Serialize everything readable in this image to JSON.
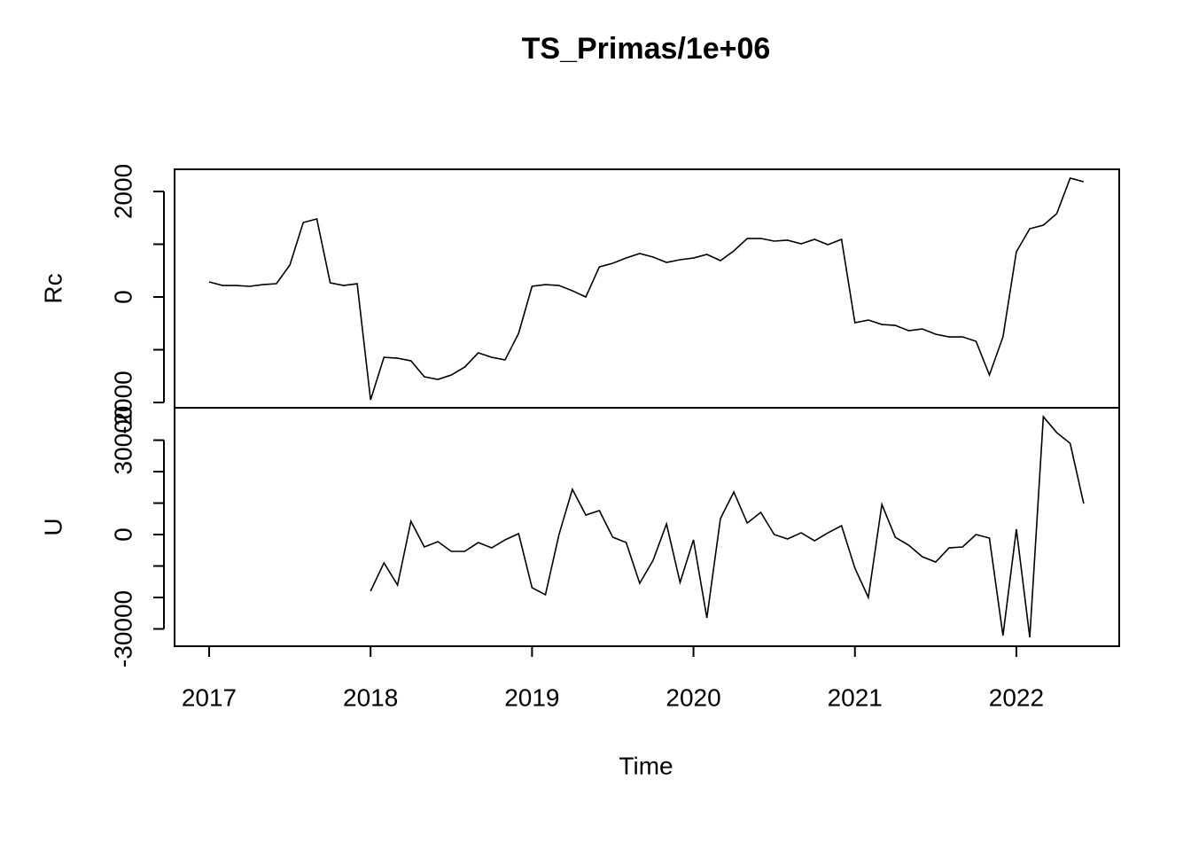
{
  "chart_data": [
    {
      "type": "line",
      "title": "TS_Primas/1e+06",
      "ylabel": "Rc",
      "color": "#000000",
      "x": [
        2017,
        2017.083,
        2017.167,
        2017.25,
        2017.333,
        2017.417,
        2017.5,
        2017.583,
        2017.667,
        2017.75,
        2017.833,
        2017.917,
        2018,
        2018.083,
        2018.167,
        2018.25,
        2018.333,
        2018.417,
        2018.5,
        2018.583,
        2018.667,
        2018.75,
        2018.833,
        2018.917,
        2019,
        2019.083,
        2019.167,
        2019.25,
        2019.333,
        2019.417,
        2019.5,
        2019.583,
        2019.667,
        2019.75,
        2019.833,
        2019.917,
        2020,
        2020.083,
        2020.167,
        2020.25,
        2020.333,
        2020.417,
        2020.5,
        2020.583,
        2020.667,
        2020.75,
        2020.833,
        2020.917,
        2021,
        2021.083,
        2021.167,
        2021.25,
        2021.333,
        2021.417,
        2021.5,
        2021.583,
        2021.667,
        2021.75,
        2021.833,
        2021.917,
        2022,
        2022.083,
        2022.167,
        2022.25,
        2022.333,
        2022.417
      ],
      "values": [
        286,
        218,
        218,
        202,
        235,
        252,
        605,
        1412,
        1479,
        269,
        218,
        252,
        -1950,
        -1143,
        -1160,
        -1210,
        -1513,
        -1563,
        -1479,
        -1328,
        -1059,
        -1143,
        -1193,
        -689,
        202,
        235,
        218,
        118,
        0,
        571,
        639,
        739,
        824,
        756,
        655,
        706,
        739,
        807,
        689,
        874,
        1109,
        1109,
        1059,
        1076,
        1008,
        1092,
        992,
        1092,
        -487,
        -437,
        -521,
        -538,
        -639,
        -605,
        -706,
        -756,
        -756,
        -840,
        -1479,
        -756,
        857,
        1294,
        1361,
        1580,
        2252,
        2185
      ],
      "xlim": [
        2016.786,
        2022.637
      ],
      "ylim": [
        -2100,
        2420
      ],
      "yticks": [
        -2000,
        0,
        2000
      ],
      "yticks_minor": [
        -1000,
        1000
      ]
    },
    {
      "type": "line",
      "ylabel": "U",
      "xlabel": "Time",
      "color": "#000000",
      "x": [
        2017,
        2017.083,
        2017.167,
        2017.25,
        2017.333,
        2017.417,
        2017.5,
        2017.583,
        2017.667,
        2017.75,
        2017.833,
        2017.917,
        2018,
        2018.083,
        2018.167,
        2018.25,
        2018.333,
        2018.417,
        2018.5,
        2018.583,
        2018.667,
        2018.75,
        2018.833,
        2018.917,
        2019,
        2019.083,
        2019.167,
        2019.25,
        2019.333,
        2019.417,
        2019.5,
        2019.583,
        2019.667,
        2019.75,
        2019.833,
        2019.917,
        2020,
        2020.083,
        2020.167,
        2020.25,
        2020.333,
        2020.417,
        2020.5,
        2020.583,
        2020.667,
        2020.75,
        2020.833,
        2020.917,
        2021,
        2021.083,
        2021.167,
        2021.25,
        2021.333,
        2021.417,
        2021.5,
        2021.583,
        2021.667,
        2021.75,
        2021.833,
        2021.917,
        2022,
        2022.083,
        2022.167,
        2022.25,
        2022.333,
        2022.417
      ],
      "values": [
        null,
        null,
        null,
        null,
        null,
        null,
        null,
        null,
        null,
        null,
        null,
        null,
        -18000,
        -9000,
        -16060,
        4230,
        -3940,
        -2250,
        -5350,
        -5350,
        -2540,
        -4230,
        -1690,
        280,
        -16900,
        -19150,
        0,
        14370,
        6200,
        7610,
        -850,
        -2540,
        -15490,
        -8170,
        3380,
        -15210,
        -1690,
        -26480,
        5070,
        13520,
        3660,
        7040,
        0,
        -1410,
        560,
        -1970,
        560,
        2820,
        -10700,
        -20000,
        9580,
        -850,
        -3380,
        -7040,
        -8730,
        -4230,
        -3940,
        0,
        -1130,
        -32110,
        1690,
        -32680,
        37460,
        32390,
        29010,
        9860
      ],
      "xlim": [
        2016.786,
        2022.637
      ],
      "ylim": [
        -35500,
        40300
      ],
      "xticks": [
        2017,
        2018,
        2019,
        2020,
        2021,
        2022
      ],
      "yticks": [
        -30000,
        0,
        30000
      ],
      "yticks_minor": [
        -20000,
        -10000,
        10000,
        20000
      ]
    }
  ]
}
